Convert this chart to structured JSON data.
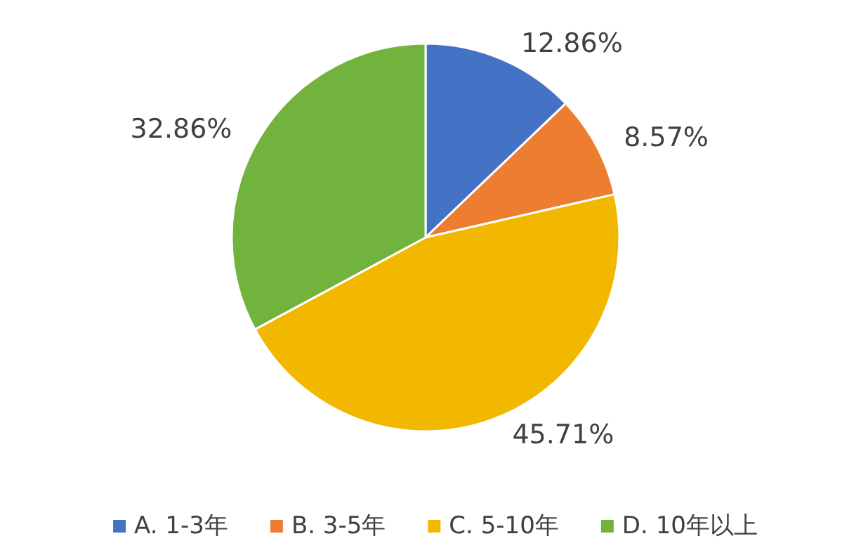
{
  "chart_data": {
    "type": "pie",
    "categories": [
      "A. 1-3年",
      "B. 3-5年",
      "C. 5-10年",
      "D. 10年以上"
    ],
    "values": [
      12.86,
      8.57,
      45.71,
      32.86
    ],
    "value_labels": [
      "12.86%",
      "8.57%",
      "45.71%",
      "32.86%"
    ],
    "colors": [
      "#4472c4",
      "#ed7d31",
      "#f2b800",
      "#72b33e"
    ],
    "legend": "bottom"
  }
}
